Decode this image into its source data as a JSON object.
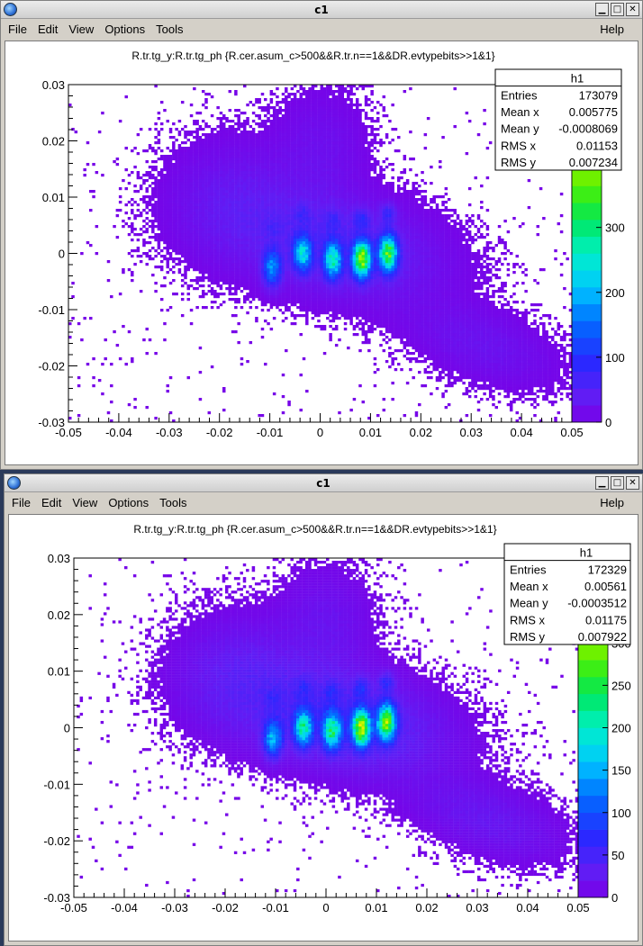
{
  "window_title": "c1",
  "menu": {
    "file": "File",
    "edit": "Edit",
    "view": "View",
    "options": "Options",
    "tools": "Tools",
    "help": "Help"
  },
  "window_buttons": {
    "minimize": "▁",
    "maximize": "□",
    "close": "✕"
  },
  "canvases": [
    {
      "title": "R.tr.tg_y:R.tr.tg_ph {R.cer.asum_c>500&&R.tr.n==1&&DR.evtypebits>>1&1}",
      "stats": {
        "name": "h1",
        "rows": [
          {
            "label": "Entries",
            "value": "173079"
          },
          {
            "label": "Mean x",
            "value": "0.005775"
          },
          {
            "label": "Mean y",
            "value": "-0.0008069"
          },
          {
            "label": "RMS x",
            "value": "0.01153"
          },
          {
            "label": "RMS y",
            "value": "0.007234"
          }
        ]
      },
      "palette_ticks": [
        "0",
        "100",
        "200",
        "300"
      ],
      "palette_max": 520,
      "palette_tick_values": [
        0,
        100,
        200,
        300
      ]
    },
    {
      "title": "R.tr.tg_y:R.tr.tg_ph {R.cer.asum_c>500&&R.tr.n==1&&DR.evtypebits>>1&1}",
      "stats": {
        "name": "h1",
        "rows": [
          {
            "label": "Entries",
            "value": "172329"
          },
          {
            "label": "Mean x",
            "value": "0.00561"
          },
          {
            "label": "Mean y",
            "value": "-0.0003512"
          },
          {
            "label": "RMS x",
            "value": "0.01175"
          },
          {
            "label": "RMS y",
            "value": "0.007922"
          }
        ]
      },
      "palette_ticks": [
        "0",
        "50",
        "100",
        "150",
        "200",
        "250",
        "300",
        "350"
      ],
      "palette_max": 400,
      "palette_tick_values": [
        0,
        50,
        100,
        150,
        200,
        250,
        300,
        350
      ]
    }
  ],
  "chart_data": [
    {
      "type": "heatmap",
      "title": "R.tr.tg_y:R.tr.tg_ph {R.cer.asum_c>500&&R.tr.n==1&&DR.evtypebits>>1&1}",
      "xlim": [
        -0.05,
        0.05
      ],
      "ylim": [
        -0.03,
        0.03
      ],
      "x_ticks": [
        "-0.05",
        "-0.04",
        "-0.03",
        "-0.02",
        "-0.01",
        "0",
        "0.01",
        "0.02",
        "0.03",
        "0.04",
        "0.05"
      ],
      "y_ticks": [
        "-0.03",
        "-0.02",
        "-0.01",
        "0",
        "0.01",
        "0.02",
        "0.03"
      ],
      "hot_spots": [
        {
          "x": -0.0095,
          "y": -0.0025,
          "peak": 120
        },
        {
          "x": -0.0035,
          "y": 0.0,
          "peak": 170
        },
        {
          "x": 0.0025,
          "y": -0.0012,
          "peak": 200
        },
        {
          "x": 0.0083,
          "y": -0.001,
          "peak": 340
        },
        {
          "x": 0.0135,
          "y": 0.0,
          "peak": 300
        }
      ]
    },
    {
      "type": "heatmap",
      "title": "R.tr.tg_y:R.tr.tg_ph {R.cer.asum_c>500&&R.tr.n==1&&DR.evtypebits>>1&1}",
      "xlim": [
        -0.05,
        0.05
      ],
      "ylim": [
        -0.03,
        0.03
      ],
      "x_ticks": [
        "-0.05",
        "-0.04",
        "-0.03",
        "-0.02",
        "-0.01",
        "0",
        "0.01",
        "0.02",
        "0.03",
        "0.04",
        "0.05"
      ],
      "y_ticks": [
        "-0.03",
        "-0.02",
        "-0.01",
        "0",
        "0.01",
        "0.02",
        "0.03"
      ],
      "hot_spots": [
        {
          "x": -0.0105,
          "y": -0.0018,
          "peak": 110
        },
        {
          "x": -0.0045,
          "y": 0.0,
          "peak": 160
        },
        {
          "x": 0.0012,
          "y": -0.0005,
          "peak": 180
        },
        {
          "x": 0.007,
          "y": 0.0,
          "peak": 280
        },
        {
          "x": 0.012,
          "y": 0.001,
          "peak": 250
        }
      ]
    }
  ]
}
